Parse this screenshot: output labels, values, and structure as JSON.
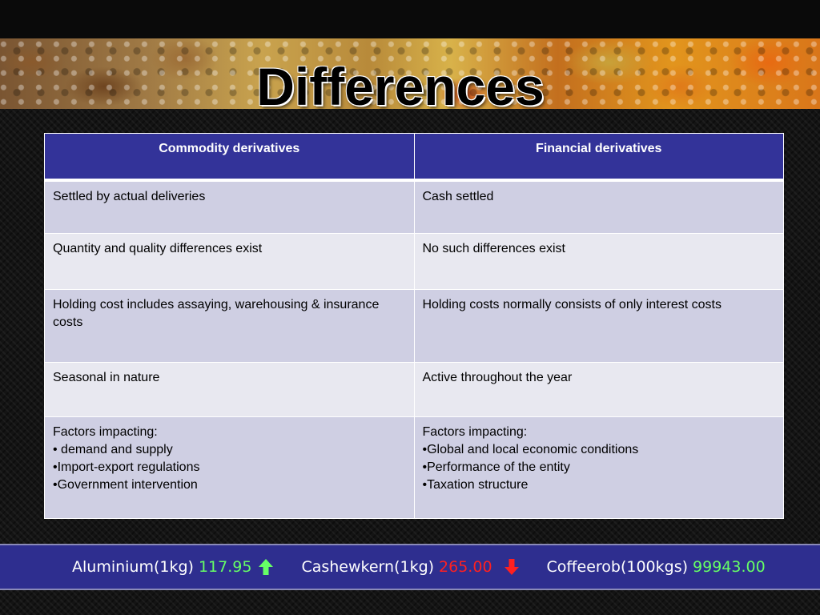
{
  "slide": {
    "title": "Differences"
  },
  "table": {
    "headers": [
      "Commodity derivatives",
      "Financial derivatives"
    ],
    "rows": [
      [
        "Settled by actual deliveries",
        "Cash settled"
      ],
      [
        "Quantity and quality differences exist",
        "No such differences exist"
      ],
      [
        "Holding cost includes assaying, warehousing & insurance costs",
        "Holding costs normally consists of only interest costs"
      ],
      [
        "Seasonal in nature",
        "Active throughout the year"
      ],
      [
        "Factors impacting:\n• demand and supply\n•Import-export regulations\n•Government intervention",
        "Factors impacting:\n•Global and local economic conditions\n•Performance of the entity\n•Taxation structure"
      ]
    ]
  },
  "ticker": {
    "items": [
      {
        "name": "Aluminium(1kg)",
        "price": "117.95",
        "trend": "up",
        "price_color": "#66ff66",
        "icon": "arrow-up-icon"
      },
      {
        "name": "Cashewkern(1kg)",
        "price": "265.00",
        "trend": "down",
        "price_color": "#ff2020",
        "icon": "arrow-down-icon"
      },
      {
        "name": "Coffeerob(100kgs)",
        "price": "99943.00",
        "trend": "",
        "price_color": "#66ff66"
      }
    ]
  },
  "colors": {
    "header_bg": "#333399",
    "row_dark": "#cfcfe3",
    "row_light": "#e8e8f0",
    "ticker_bg": "#2e2e8f"
  }
}
